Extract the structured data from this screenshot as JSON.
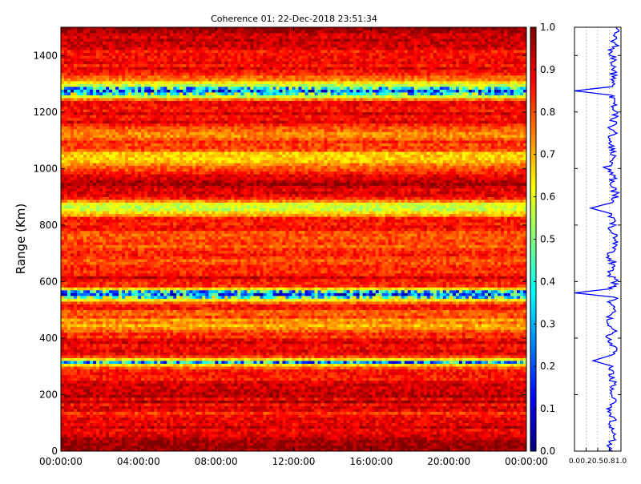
{
  "chart_data": [
    {
      "type": "heatmap",
      "title": "Coherence 01: 22-Dec-2018 23:51:34",
      "ylabel": "Range (Km)",
      "xlabel": "",
      "x_ticks": [
        "00:00:00",
        "04:00:00",
        "08:00:00",
        "12:00:00",
        "16:00:00",
        "20:00:00",
        "00:00:00"
      ],
      "y_ticks": [
        "0",
        "200",
        "400",
        "600",
        "800",
        "1000",
        "1200",
        "1400"
      ],
      "y_tick_values": [
        0,
        200,
        400,
        600,
        800,
        1000,
        1200,
        1400
      ],
      "ylim": [
        0,
        1500
      ],
      "xlim_hours": [
        0,
        24
      ],
      "colormap": "jet",
      "value_range": [
        0.0,
        1.0
      ],
      "colorbar_ticks": [
        "0.0",
        "0.1",
        "0.2",
        "0.3",
        "0.4",
        "0.5",
        "0.6",
        "0.7",
        "0.8",
        "0.9",
        "1.0"
      ],
      "range_profile": [
        [
          20,
          0.95
        ],
        [
          60,
          0.93
        ],
        [
          100,
          0.9
        ],
        [
          140,
          0.85
        ],
        [
          180,
          0.92
        ],
        [
          220,
          0.9
        ],
        [
          260,
          0.88
        ],
        [
          300,
          0.8
        ],
        [
          315,
          0.3
        ],
        [
          330,
          0.82
        ],
        [
          360,
          0.9
        ],
        [
          400,
          0.86
        ],
        [
          440,
          0.72
        ],
        [
          480,
          0.78
        ],
        [
          520,
          0.85
        ],
        [
          560,
          0.18
        ],
        [
          580,
          0.84
        ],
        [
          620,
          0.9
        ],
        [
          660,
          0.8
        ],
        [
          700,
          0.85
        ],
        [
          740,
          0.78
        ],
        [
          780,
          0.82
        ],
        [
          820,
          0.88
        ],
        [
          860,
          0.5
        ],
        [
          900,
          0.88
        ],
        [
          940,
          0.95
        ],
        [
          980,
          0.9
        ],
        [
          1040,
          0.62
        ],
        [
          1080,
          0.85
        ],
        [
          1120,
          0.72
        ],
        [
          1160,
          0.88
        ],
        [
          1200,
          0.9
        ],
        [
          1240,
          0.85
        ],
        [
          1275,
          0.25
        ],
        [
          1310,
          0.75
        ],
        [
          1350,
          0.9
        ],
        [
          1400,
          0.86
        ],
        [
          1450,
          0.92
        ],
        [
          1490,
          0.95
        ]
      ]
    },
    {
      "type": "line",
      "title": "",
      "xlabel": "",
      "ylabel": "",
      "x_ticks": [
        "0.0",
        "0.2",
        "0.5",
        "0.8",
        "1.0"
      ],
      "x_tick_values": [
        0.0,
        0.25,
        0.5,
        0.75,
        1.0
      ],
      "xlim": [
        0,
        1
      ],
      "ylim": [
        0,
        1500
      ],
      "series": [
        {
          "color": "#0000ff",
          "points": [
            [
              0.82,
              0
            ],
            [
              0.75,
              30
            ],
            [
              0.88,
              60
            ],
            [
              0.78,
              90
            ],
            [
              0.85,
              120
            ],
            [
              0.7,
              150
            ],
            [
              0.9,
              180
            ],
            [
              0.8,
              210
            ],
            [
              0.86,
              240
            ],
            [
              0.74,
              270
            ],
            [
              0.82,
              300
            ],
            [
              0.4,
              320
            ],
            [
              0.8,
              340
            ],
            [
              0.88,
              370
            ],
            [
              0.72,
              400
            ],
            [
              0.84,
              430
            ],
            [
              0.7,
              460
            ],
            [
              0.82,
              490
            ],
            [
              0.78,
              520
            ],
            [
              0.85,
              545
            ],
            [
              0.0,
              560
            ],
            [
              0.8,
              575
            ],
            [
              0.88,
              600
            ],
            [
              0.76,
              630
            ],
            [
              0.85,
              660
            ],
            [
              0.74,
              690
            ],
            [
              0.82,
              720
            ],
            [
              0.88,
              750
            ],
            [
              0.78,
              780
            ],
            [
              0.85,
              810
            ],
            [
              0.8,
              840
            ],
            [
              0.35,
              860
            ],
            [
              0.82,
              880
            ],
            [
              0.9,
              910
            ],
            [
              0.78,
              940
            ],
            [
              0.85,
              970
            ],
            [
              0.68,
              1000
            ],
            [
              0.82,
              1030
            ],
            [
              0.88,
              1060
            ],
            [
              0.74,
              1090
            ],
            [
              0.85,
              1120
            ],
            [
              0.8,
              1150
            ],
            [
              0.88,
              1180
            ],
            [
              0.82,
              1210
            ],
            [
              0.86,
              1240
            ],
            [
              0.78,
              1260
            ],
            [
              0.0,
              1275
            ],
            [
              0.82,
              1290
            ],
            [
              0.88,
              1320
            ],
            [
              0.8,
              1350
            ],
            [
              0.85,
              1380
            ],
            [
              0.78,
              1410
            ],
            [
              0.88,
              1440
            ],
            [
              0.84,
              1470
            ],
            [
              0.9,
              1500
            ]
          ]
        }
      ]
    }
  ]
}
